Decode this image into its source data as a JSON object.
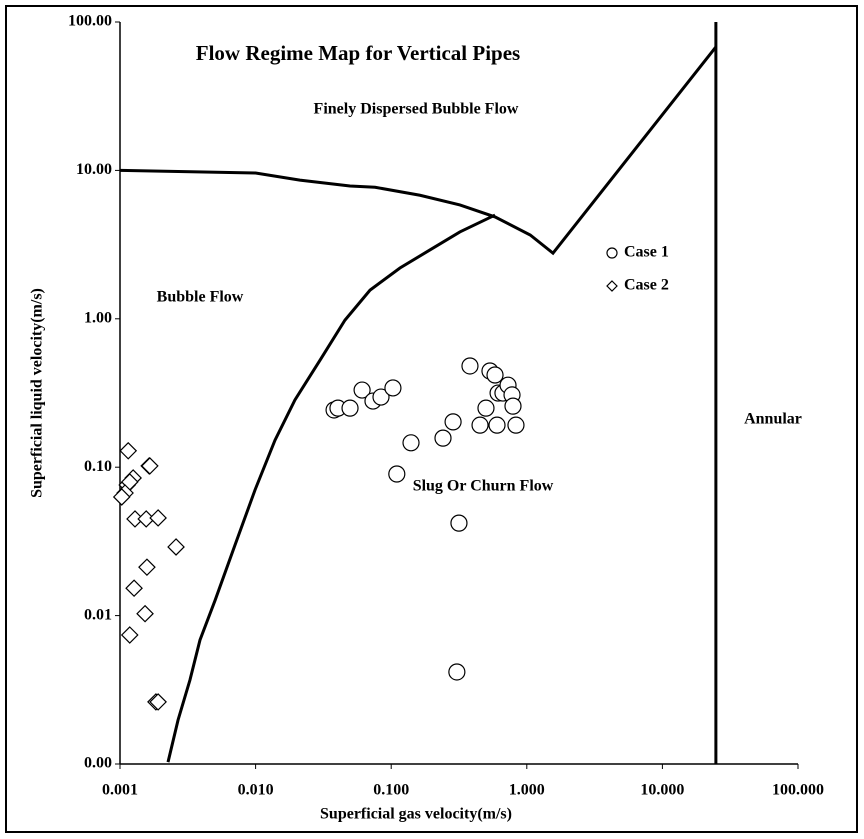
{
  "chart_data": {
    "type": "scatter",
    "title": "Flow Regime Map for Vertical Pipes",
    "xlabel": "Superficial gas velocity(m/s)",
    "ylabel": "Superficial liquid velocity(m/s)",
    "xscale": "log",
    "yscale": "log",
    "grid": false,
    "legend": "right",
    "xlim": [
      0.001,
      100
    ],
    "ylim": [
      0.001,
      100
    ],
    "xticks": [
      0.001,
      {
        "value": 0.01,
        "label": "0.010"
      },
      {
        "value": 0.1,
        "label": "0.100"
      },
      {
        "value": 1,
        "label": "1.000"
      },
      {
        "value": 10,
        "label": "10.000"
      },
      {
        "value": 100,
        "label": "100.000"
      }
    ],
    "yticks": [
      {
        "value": 0.001,
        "label": "0.00"
      },
      {
        "value": 0.01,
        "label": "0.01"
      },
      {
        "value": 0.1,
        "label": "0.10"
      },
      {
        "value": 1,
        "label": "1.00"
      },
      {
        "value": 10,
        "label": "10.00"
      },
      {
        "value": 100,
        "label": "100.00"
      }
    ],
    "annotations": [
      "Finely Dispersed Bubble Flow",
      "Bubble Flow",
      "Slug Or Churn Flow",
      "Annular"
    ],
    "boundaries": [
      {
        "color": "#000000",
        "x": [
          0.001,
          0.01,
          0.0212,
          0.0497,
          0.076,
          0.163,
          0.321,
          0.583,
          1.06,
          1.56,
          24.8
        ],
        "y": [
          10,
          9.6,
          8.6,
          7.85,
          7.7,
          6.8,
          5.85,
          4.86,
          3.67,
          2.77,
          67.9
        ]
      },
      {
        "color": "#000000",
        "x": [
          0.00226,
          0.00268,
          0.00328,
          0.00389,
          0.00503,
          0.00705,
          0.0099,
          0.0139,
          0.0195,
          0.0299,
          0.0456,
          0.0698,
          0.116,
          0.193,
          0.321,
          0.583
        ],
        "y": [
          0.00103,
          0.00198,
          0.00368,
          0.00685,
          0.0127,
          0.0299,
          0.0702,
          0.152,
          0.284,
          0.527,
          0.98,
          1.56,
          2.2,
          2.91,
          3.85,
          5.0
        ]
      },
      {
        "color": "#000000",
        "x": [
          24.8,
          24.8
        ],
        "y": [
          0.001,
          100
        ]
      }
    ],
    "series": [
      {
        "name": "Case 1",
        "marker": "circle",
        "color": "#000000",
        "x": [
          0.0379,
          0.0405,
          0.0497,
          0.061,
          0.0734,
          0.0841,
          0.103,
          0.381,
          0.535,
          0.583,
          0.614,
          0.667,
          0.727,
          0.778,
          0.5,
          0.791,
          0.286,
          0.452,
          0.603,
          0.832,
          0.14,
          0.241,
          0.11,
          0.316,
          0.305
        ],
        "values": [
          0.243,
          0.25,
          0.25,
          0.331,
          0.279,
          0.297,
          0.342,
          0.481,
          0.445,
          0.418,
          0.316,
          0.316,
          0.357,
          0.307,
          0.25,
          0.258,
          0.202,
          0.192,
          0.192,
          0.192,
          0.146,
          0.157,
          0.09,
          0.042,
          0.00417
        ]
      },
      {
        "name": "Case 2",
        "marker": "diamond",
        "color": "#000000",
        "x": [
          0.00115,
          0.00113,
          0.00125,
          0.00118,
          0.00109,
          0.00103,
          0.00164,
          0.00166,
          0.00129,
          0.00156,
          0.00191,
          0.00259,
          0.00158,
          0.00127,
          0.00153,
          0.00118,
          0.00184,
          0.00191
        ],
        "values": [
          0.129,
          0.0759,
          0.0846,
          0.0795,
          0.067,
          0.063,
          0.102,
          0.102,
          0.0448,
          0.0448,
          0.0455,
          0.029,
          0.0212,
          0.0153,
          0.0103,
          0.0074,
          0.00262,
          0.00262
        ]
      }
    ]
  }
}
